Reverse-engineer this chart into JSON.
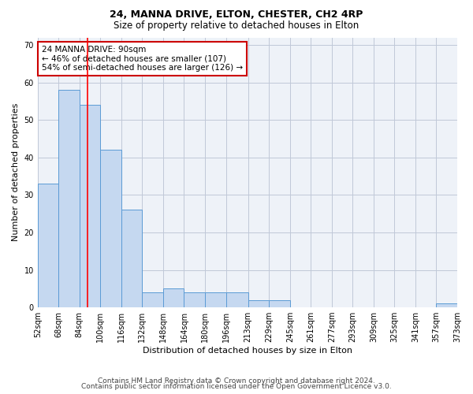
{
  "title1": "24, MANNA DRIVE, ELTON, CHESTER, CH2 4RP",
  "title2": "Size of property relative to detached houses in Elton",
  "xlabel": "Distribution of detached houses by size in Elton",
  "ylabel": "Number of detached properties",
  "footer1": "Contains HM Land Registry data © Crown copyright and database right 2024.",
  "footer2": "Contains public sector information licensed under the Open Government Licence v3.0.",
  "annotation_title": "24 MANNA DRIVE: 90sqm",
  "annotation_line1": "← 46% of detached houses are smaller (107)",
  "annotation_line2": "54% of semi-detached houses are larger (126) →",
  "property_size": 90,
  "bin_edges": [
    52,
    68,
    84,
    100,
    116,
    132,
    148,
    164,
    180,
    196,
    213,
    229,
    245,
    261,
    277,
    293,
    309,
    325,
    341,
    357,
    373
  ],
  "bar_values": [
    33,
    58,
    54,
    42,
    26,
    4,
    5,
    4,
    4,
    4,
    2,
    2,
    0,
    0,
    0,
    0,
    0,
    0,
    0,
    1
  ],
  "bar_color": "#c5d8f0",
  "bar_edge_color": "#5b9bd5",
  "vline_color": "#ff0000",
  "vline_x": 90,
  "ylim": [
    0,
    72
  ],
  "yticks": [
    0,
    10,
    20,
    30,
    40,
    50,
    60,
    70
  ],
  "grid_color": "#c0c8d8",
  "background_color": "#eef2f8",
  "annotation_box_color": "#ffffff",
  "annotation_box_edge_color": "#cc0000",
  "title1_fontsize": 9,
  "title2_fontsize": 8.5,
  "xlabel_fontsize": 8,
  "ylabel_fontsize": 8,
  "footer_fontsize": 6.5,
  "tick_label_fontsize": 7,
  "annotation_fontsize": 7.5
}
